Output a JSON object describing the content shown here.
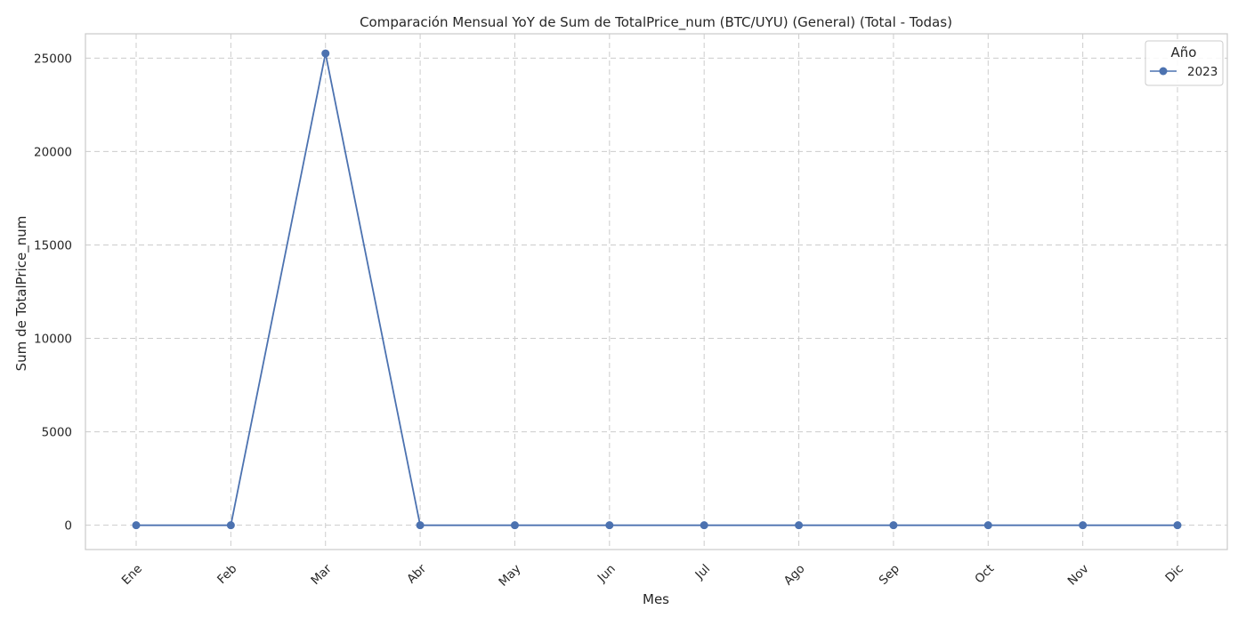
{
  "chart_data": {
    "type": "line",
    "title": "Comparación Mensual YoY de Sum de TotalPrice_num (BTC/UYU) (General) (Total - Todas)",
    "xlabel": "Mes",
    "ylabel": "Sum de TotalPrice_num",
    "categories": [
      "Ene",
      "Feb",
      "Mar",
      "Abr",
      "May",
      "Jun",
      "Jul",
      "Ago",
      "Sep",
      "Oct",
      "Nov",
      "Dic"
    ],
    "y_ticks": [
      0,
      5000,
      10000,
      15000,
      20000,
      25000
    ],
    "y_tick_labels": [
      "0",
      "5000",
      "10000",
      "15000",
      "20000",
      "25000"
    ],
    "ylim": [
      -1300,
      26300
    ],
    "grid": true,
    "legend": {
      "title": "Año",
      "placement": "top-right"
    },
    "series": [
      {
        "name": "2023",
        "color": "#4c72b0",
        "marker": "circle",
        "values": [
          0,
          0,
          25250,
          0,
          0,
          0,
          0,
          0,
          0,
          0,
          0,
          0
        ]
      }
    ]
  }
}
